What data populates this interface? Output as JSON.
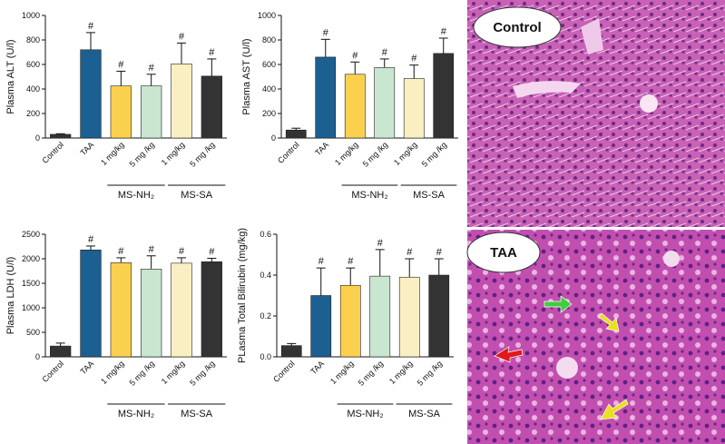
{
  "chart_data": [
    {
      "type": "bar",
      "y_label": "Plasma ALT (U/l)",
      "categories": [
        "Control",
        "TAA",
        "1 mg/kg",
        "5 mg /kg",
        "1 mg/kg",
        "5 mg /kg"
      ],
      "values": [
        30,
        720,
        425,
        425,
        605,
        505
      ],
      "errors": [
        5,
        140,
        120,
        95,
        170,
        140
      ],
      "colors": [
        "#333333",
        "#1c5f91",
        "#fcd04f",
        "#c8e6d0",
        "#f9efc2",
        "#333333"
      ],
      "annotation": "#",
      "groups": [
        "MS-NH₂",
        "MS-SA"
      ],
      "ylim": [
        0,
        1000
      ],
      "yticks": [
        0,
        200,
        400,
        600,
        800,
        1000
      ]
    },
    {
      "type": "bar",
      "y_label": "Plasma AST (U/l)",
      "categories": [
        "Control",
        "TAA",
        "1 mg/kg",
        "5 mg /kg",
        "1 mg/kg",
        "5 mg /kg"
      ],
      "values": [
        65,
        660,
        520,
        575,
        485,
        690
      ],
      "errors": [
        15,
        145,
        100,
        70,
        110,
        125
      ],
      "colors": [
        "#333333",
        "#1c5f91",
        "#fcd04f",
        "#c8e6d0",
        "#f9efc2",
        "#333333"
      ],
      "annotation": "#",
      "groups": [
        "MS-NH₂",
        "MS-SA"
      ],
      "ylim": [
        0,
        1000
      ],
      "yticks": [
        0,
        200,
        400,
        600,
        800,
        1000
      ]
    },
    {
      "type": "bar",
      "y_label": "Plasma LDH (U/l)",
      "categories": [
        "Control",
        "TAA",
        "1 mg/kg",
        "5 mg /kg",
        "1 mg/kg",
        "5 mg /kg"
      ],
      "values": [
        220,
        2180,
        1920,
        1790,
        1910,
        1940
      ],
      "errors": [
        60,
        80,
        100,
        270,
        110,
        70
      ],
      "colors": [
        "#333333",
        "#1c5f91",
        "#fcd04f",
        "#c8e6d0",
        "#f9efc2",
        "#333333"
      ],
      "annotation": "#",
      "groups": [
        "MS-NH₂",
        "MS-SA"
      ],
      "ylim": [
        0,
        2500
      ],
      "yticks": [
        0,
        500,
        1000,
        1500,
        2000,
        2500
      ]
    },
    {
      "type": "bar",
      "y_label": "PLasma Total Bilirubin (mg/kg)",
      "categories": [
        "Control",
        "TAA",
        "1 mg/kg",
        "5 mg /kg",
        "1 mg/kg",
        "5 mg /kg"
      ],
      "values": [
        0.055,
        0.3,
        0.35,
        0.395,
        0.39,
        0.4
      ],
      "errors": [
        0.01,
        0.135,
        0.085,
        0.13,
        0.09,
        0.08
      ],
      "colors": [
        "#333333",
        "#1c5f91",
        "#fcd04f",
        "#c8e6d0",
        "#f9efc2",
        "#333333"
      ],
      "annotation": "#",
      "groups": [
        "MS-NH₂",
        "MS-SA"
      ],
      "ylim": [
        0,
        0.6
      ],
      "yticks": [
        {
          "value": 0,
          "label": "0.0"
        },
        0.2,
        0.4,
        0.6
      ]
    }
  ],
  "images": [
    {
      "label": "Control"
    },
    {
      "label": "TAA"
    }
  ]
}
